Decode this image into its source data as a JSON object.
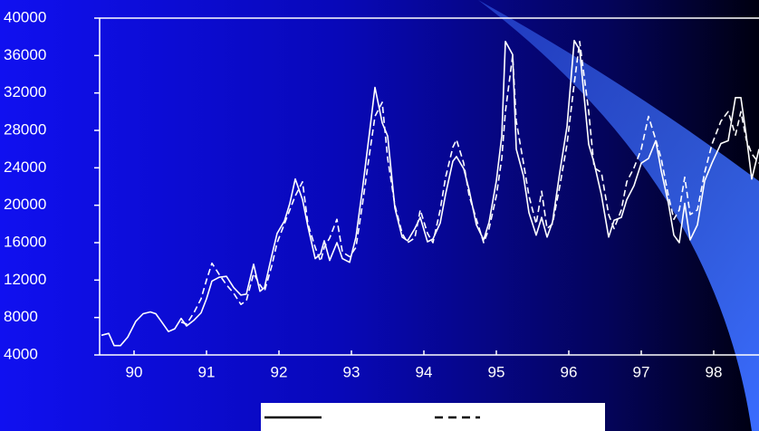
{
  "chart_data": {
    "type": "line",
    "x": [
      1990.05,
      1990.15,
      1990.225,
      1990.3125,
      1990.4125,
      1990.525,
      1990.625,
      1990.725,
      1990.8,
      1990.875,
      1990.975,
      1991.0625,
      1991.15,
      1991.225,
      1991.325,
      1991.425,
      1991.5,
      1991.575,
      1991.675,
      1991.775,
      1991.875,
      1991.975,
      1992.05,
      1992.15,
      1992.2375,
      1992.3,
      1992.4,
      1992.475,
      1992.575,
      1992.65,
      1992.725,
      1992.825,
      1992.9,
      1993.0,
      1993.075,
      1993.125,
      1993.2,
      1993.3,
      1993.375,
      1993.475,
      1993.5625,
      1993.65,
      1993.75,
      1993.825,
      1993.925,
      1994.0,
      1994.1,
      1994.2,
      1994.275,
      1994.375,
      1994.45,
      1994.55,
      1994.625,
      1994.725,
      1994.8,
      1994.9,
      1994.95,
      1995.05,
      1995.125,
      1995.225,
      1995.325,
      1995.4,
      1995.5,
      1995.575,
      1995.625,
      1995.725,
      1995.775,
      1995.875,
      1995.95,
      1996.05,
      1996.125,
      1996.2,
      1996.275,
      1996.375,
      1996.475,
      1996.575,
      1996.65,
      1996.775,
      1996.85,
      1996.95,
      1997.05,
      1997.125,
      1997.225,
      1997.3,
      1997.4,
      1997.5,
      1997.6,
      1997.7,
      1997.775,
      1997.875,
      1997.95,
      1998.025,
      1998.1,
      1998.175,
      1998.275,
      1998.375,
      1998.475,
      1998.6,
      1998.7,
      1998.8,
      1998.875,
      1998.95,
      1999.025,
      1999.125
    ],
    "series": [
      {
        "color": "#ffffff",
        "style": "solid",
        "values": [
          6100,
          6300,
          5000,
          5000,
          5900,
          7600,
          8400,
          8600,
          8400,
          7600,
          6500,
          6800,
          7900,
          7100,
          7700,
          8500,
          10000,
          11900,
          12300,
          12400,
          11200,
          10400,
          10500,
          13700,
          10800,
          11200,
          14600,
          17000,
          18300,
          20200,
          22800,
          20600,
          17700,
          14300,
          14800,
          16200,
          14100,
          16000,
          14300,
          13900,
          16600,
          21600,
          27800,
          32600,
          28800,
          27400,
          19700,
          16600,
          16200,
          17500,
          18700,
          16100,
          16400,
          18100,
          21200,
          24700,
          25200,
          23900,
          21600,
          17900,
          16300,
          18200,
          22600,
          27400,
          37500,
          36100,
          26000,
          23100,
          19200,
          16800,
          18700,
          16600,
          18200,
          23500,
          28400,
          37600,
          36600,
          26500,
          24500,
          21100,
          16600,
          18400,
          18700,
          20600,
          22100,
          24500,
          25000,
          26900,
          23700,
          20200,
          16800,
          16000,
          20200,
          16300,
          17900,
          22600,
          24500,
          26600,
          26900,
          31500,
          31500,
          27400,
          22800,
          26000
        ]
      },
      {
        "color": "#ffffff",
        "style": "dashed",
        "values": [
          null,
          null,
          null,
          null,
          null,
          null,
          null,
          null,
          null,
          null,
          null,
          null,
          7500,
          7300,
          8500,
          10000,
          12000,
          13800,
          12600,
          11500,
          10600,
          9400,
          9800,
          12700,
          11500,
          10800,
          13500,
          16000,
          18000,
          19500,
          21000,
          22500,
          18000,
          15500,
          14000,
          15500,
          16500,
          18500,
          15000,
          14500,
          15500,
          20000,
          25500,
          29500,
          31000,
          25000,
          20000,
          17000,
          16000,
          16500,
          19500,
          17000,
          16000,
          19500,
          23000,
          26200,
          27000,
          24500,
          21000,
          18500,
          16000,
          17500,
          21000,
          25000,
          30000,
          36000,
          29000,
          24500,
          21000,
          18000,
          21500,
          17500,
          18000,
          22000,
          26500,
          33000,
          37500,
          30000,
          24000,
          23500,
          19000,
          17500,
          19500,
          22500,
          24000,
          26000,
          29500,
          27000,
          25000,
          21000,
          18500,
          19500,
          23000,
          19000,
          19500,
          23500,
          26500,
          29000,
          30000,
          27500,
          30000,
          27000,
          25500,
          24500
        ]
      }
    ],
    "xlim": [
      1990,
      1999.125
    ],
    "xticks": [
      {
        "value": 1990.5,
        "label": "90"
      },
      {
        "value": 1991.5,
        "label": "91"
      },
      {
        "value": 1992.5,
        "label": "92"
      },
      {
        "value": 1993.5,
        "label": "93"
      },
      {
        "value": 1994.5,
        "label": "94"
      },
      {
        "value": 1995.5,
        "label": "95"
      },
      {
        "value": 1996.5,
        "label": "96"
      },
      {
        "value": 1997.5,
        "label": "97"
      },
      {
        "value": 1998.5,
        "label": "98"
      }
    ],
    "ylim": [
      4000,
      40000
    ],
    "yticks": [
      4000,
      8000,
      12000,
      16000,
      20000,
      24000,
      28000,
      32000,
      36000,
      40000
    ]
  }
}
